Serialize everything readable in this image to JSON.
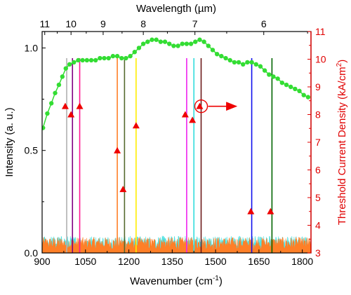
{
  "chart_data": {
    "type": "line",
    "title": "",
    "x_axis": {
      "label": "Wavenumber (cm",
      "label_sup": "-1",
      "label_end": ")",
      "range": [
        900,
        1830
      ],
      "ticks": [
        900,
        1050,
        1200,
        1350,
        1500,
        1650,
        1800
      ],
      "tick_labels": [
        "900",
        "1050",
        "1200",
        "1350",
        "1500",
        "1650",
        "1800"
      ]
    },
    "y_axis_left": {
      "label": "Intensity (a. u.)",
      "range": [
        0,
        1.08
      ],
      "ticks": [
        0.0,
        0.5,
        1.0
      ],
      "tick_labels": [
        "0.0",
        "0.5",
        "1.0"
      ]
    },
    "y_axis_right": {
      "label": "Threshold Current Density (kA/cm",
      "label_sup": "2",
      "label_end": ")",
      "range": [
        3,
        11
      ],
      "ticks": [
        3,
        4,
        5,
        6,
        7,
        8,
        9,
        10,
        11
      ],
      "tick_labels": [
        "3",
        "4",
        "5",
        "6",
        "7",
        "8",
        "9",
        "10",
        "11"
      ],
      "color": "#e00000"
    },
    "x_axis_top": {
      "label": "Wavelength (µm)",
      "ticks_um": [
        11,
        10,
        9,
        8,
        7,
        6
      ],
      "tick_labels": [
        "11",
        "10",
        "9",
        "8",
        "7",
        "6"
      ]
    },
    "series": [
      {
        "id": "intensity-curve",
        "axis": "left",
        "color": "#33dd33",
        "style": "line-markers",
        "x": [
          903,
          918,
          932,
          945,
          958,
          970,
          982,
          995,
          1010,
          1025,
          1040,
          1055,
          1070,
          1085,
          1100,
          1115,
          1130,
          1145,
          1160,
          1175,
          1190,
          1205,
          1220,
          1235,
          1250,
          1265,
          1280,
          1295,
          1310,
          1325,
          1340,
          1355,
          1370,
          1385,
          1400,
          1415,
          1430,
          1445,
          1460,
          1475,
          1490,
          1505,
          1520,
          1535,
          1550,
          1565,
          1580,
          1595,
          1610,
          1625,
          1640,
          1655,
          1670,
          1685,
          1700,
          1715,
          1730,
          1745,
          1760,
          1775,
          1790,
          1805,
          1820
        ],
        "y": [
          0.61,
          0.68,
          0.73,
          0.78,
          0.82,
          0.86,
          0.9,
          0.92,
          0.93,
          0.94,
          0.94,
          0.94,
          0.94,
          0.94,
          0.95,
          0.95,
          0.95,
          0.96,
          0.96,
          0.95,
          0.95,
          0.96,
          0.98,
          1.0,
          1.02,
          1.03,
          1.04,
          1.04,
          1.03,
          1.03,
          1.02,
          1.01,
          1.01,
          1.02,
          1.02,
          1.02,
          1.03,
          1.04,
          1.03,
          1.01,
          0.99,
          0.97,
          0.96,
          0.95,
          0.94,
          0.93,
          0.93,
          0.92,
          0.93,
          0.93,
          0.92,
          0.91,
          0.89,
          0.87,
          0.86,
          0.85,
          0.83,
          0.82,
          0.81,
          0.8,
          0.79,
          0.77,
          0.76
        ]
      },
      {
        "id": "threshold-points",
        "axis": "right",
        "color": "#ee0000",
        "style": "triangle-markers",
        "x": [
          980,
          1000,
          1030,
          1160,
          1180,
          1225,
          1395,
          1420,
          1445,
          1622,
          1690
        ],
        "y": [
          8.3,
          8.0,
          8.3,
          6.7,
          5.3,
          7.6,
          8.0,
          7.8,
          8.3,
          4.5,
          4.5
        ]
      }
    ],
    "vertical_lines": [
      {
        "x": 985,
        "color": "#b0b0b0"
      },
      {
        "x": 1005,
        "color": "#800080"
      },
      {
        "x": 1030,
        "color": "#ff1493"
      },
      {
        "x": 1160,
        "color": "#ff7f27"
      },
      {
        "x": 1185,
        "color": "#556b2f"
      },
      {
        "x": 1225,
        "color": "#ffee00"
      },
      {
        "x": 1400,
        "color": "#ee22ee"
      },
      {
        "x": 1425,
        "color": "#33dddd"
      },
      {
        "x": 1450,
        "color": "#6b1a1a"
      },
      {
        "x": 1625,
        "color": "#1010ee"
      },
      {
        "x": 1695,
        "color": "#006400"
      }
    ],
    "noise_floor": {
      "colors": [
        "#ff7f27",
        "#33dddd"
      ],
      "level": 0.045,
      "amplitude": 0.04
    },
    "annotation": {
      "type": "circle-arrow",
      "x": 1450,
      "y_right": 8.3,
      "points_to": "right-axis",
      "color": "#ee0000"
    }
  }
}
